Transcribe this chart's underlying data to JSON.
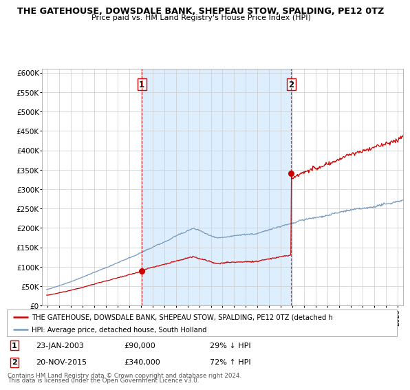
{
  "title": "THE GATEHOUSE, DOWSDALE BANK, SHEPEAU STOW, SPALDING, PE12 0TZ",
  "subtitle": "Price paid vs. HM Land Registry's House Price Index (HPI)",
  "legend_line1": "THE GATEHOUSE, DOWSDALE BANK, SHEPEAU STOW, SPALDING, PE12 0TZ (detached h",
  "legend_line2": "HPI: Average price, detached house, South Holland",
  "footer1": "Contains HM Land Registry data © Crown copyright and database right 2024.",
  "footer2": "This data is licensed under the Open Government Licence v3.0.",
  "annotation1": {
    "num": "1",
    "date": "23-JAN-2003",
    "price": "£90,000",
    "hpi": "29% ↓ HPI"
  },
  "annotation2": {
    "num": "2",
    "date": "20-NOV-2015",
    "price": "£340,000",
    "hpi": "72% ↑ HPI"
  },
  "vline1_year": 2003.07,
  "vline2_year": 2015.9,
  "point1_year": 2003.07,
  "point1_value": 90000,
  "point2_year": 2015.9,
  "point2_value": 340000,
  "red_color": "#cc0000",
  "blue_color": "#7799bb",
  "shade_color": "#ddeeff",
  "ylim": [
    0,
    600000
  ],
  "yticks": [
    0,
    50000,
    100000,
    150000,
    200000,
    250000,
    300000,
    350000,
    400000,
    450000,
    500000,
    550000,
    600000
  ],
  "xlim_start": 1995,
  "xlim_end": 2026
}
